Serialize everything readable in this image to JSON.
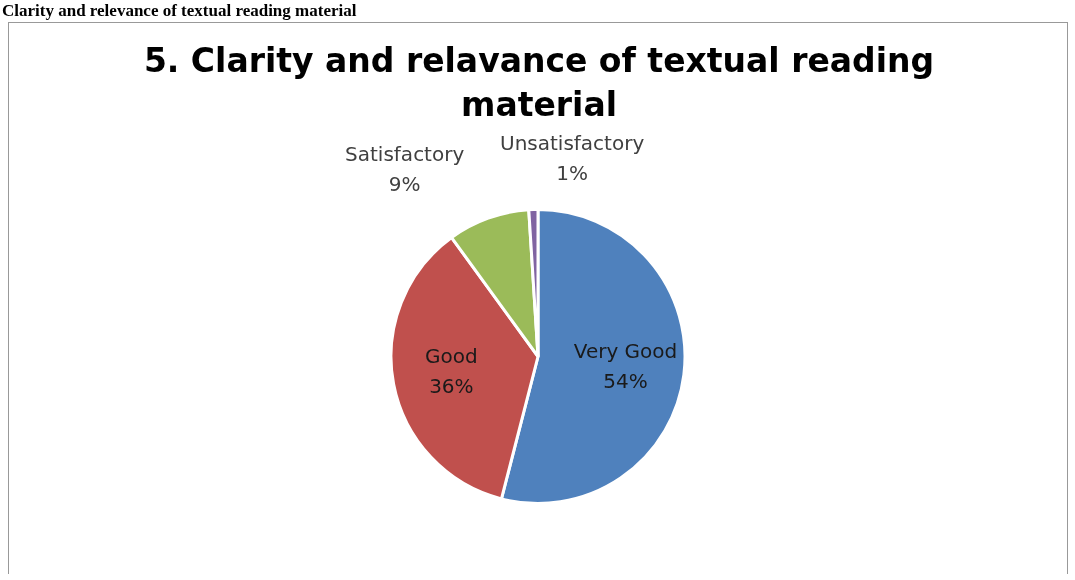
{
  "chart_data": {
    "type": "pie",
    "title": "5. Clarity and relavance of textual reading material",
    "annotations": [
      "Clarity and relevance of textual reading material"
    ],
    "categories": [
      "Very Good",
      "Good",
      "Satisfactory",
      "Unsatisfactory"
    ],
    "values": [
      54,
      36,
      9,
      1
    ],
    "colors": [
      "#4f81bd",
      "#c0504d",
      "#9bbb59",
      "#8064a2"
    ],
    "value_labels": [
      "54%",
      "36%",
      "9%",
      "1%"
    ],
    "legend": false
  }
}
